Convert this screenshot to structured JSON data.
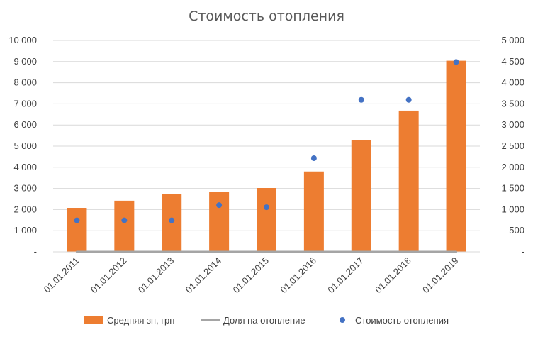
{
  "chart_data": {
    "type": "bar",
    "title": "Стоимость отопления",
    "categories": [
      "01.01.2011",
      "01.01.2012",
      "01.01.2013",
      "01.01.2014",
      "01.01.2015",
      "01.01.2016",
      "01.01.2017",
      "01.01.2018",
      "01.01.2019"
    ],
    "series": [
      {
        "name": "Средняя зп, грн",
        "type": "bar",
        "axis": "left",
        "color": "#ED7D31",
        "values": [
          2080,
          2420,
          2720,
          2820,
          3020,
          3800,
          5280,
          6680,
          9040
        ]
      },
      {
        "name": "Доля на отопление",
        "type": "line",
        "axis": "right",
        "color": "#A5A5A5",
        "values": [
          0.35,
          0.3,
          0.27,
          0.39,
          0.35,
          0.58,
          0.68,
          0.54,
          0.5
        ]
      },
      {
        "name": "Стоимость отопления",
        "type": "scatter",
        "axis": "right",
        "color": "#4472C4",
        "values": [
          745,
          745,
          745,
          1105,
          1055,
          2215,
          3595,
          3595,
          4490
        ]
      }
    ],
    "y_left": {
      "min": 0,
      "max": 10000,
      "step": 1000,
      "tick_labels": [
        "-",
        "1 000",
        "2 000",
        "3 000",
        "4 000",
        "5 000",
        "6 000",
        "7 000",
        "8 000",
        "9 000",
        "10 000"
      ]
    },
    "y_right": {
      "min": 0,
      "max": 5000,
      "step": 500,
      "tick_labels": [
        "-",
        "500",
        "1 000",
        "1 500",
        "2 000",
        "2 500",
        "3 000",
        "3 500",
        "4 000",
        "4 500",
        "5 000"
      ]
    },
    "grid": true,
    "legend_position": "bottom"
  }
}
